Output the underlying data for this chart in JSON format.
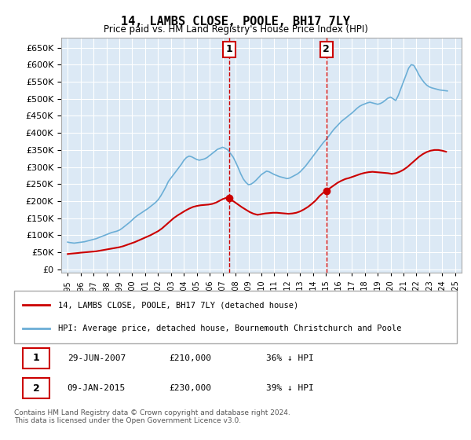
{
  "title": "14, LAMBS CLOSE, POOLE, BH17 7LY",
  "subtitle": "Price paid vs. HM Land Registry's House Price Index (HPI)",
  "ylabel_format": "£{0}K",
  "yticks": [
    0,
    50000,
    100000,
    150000,
    200000,
    250000,
    300000,
    350000,
    400000,
    450000,
    500000,
    550000,
    600000,
    650000
  ],
  "xlim_start": 1994.5,
  "xlim_end": 2025.5,
  "ylim": [
    -10000,
    680000
  ],
  "bg_color": "#dce9f5",
  "plot_bg_color": "#dce9f5",
  "grid_color": "#ffffff",
  "hpi_color": "#6baed6",
  "price_color": "#cc0000",
  "marker1_date": 2007.49,
  "marker1_price": 210000,
  "marker1_label": "1",
  "marker2_date": 2015.03,
  "marker2_price": 230000,
  "marker2_label": "2",
  "legend_line1": "14, LAMBS CLOSE, POOLE, BH17 7LY (detached house)",
  "legend_line2": "HPI: Average price, detached house, Bournemouth Christchurch and Poole",
  "table_row1": "1    29-JUN-2007    £210,000    36% ↓ HPI",
  "table_row2": "2    09-JAN-2015    £230,000    39% ↓ HPI",
  "footnote": "Contains HM Land Registry data © Crown copyright and database right 2024.\nThis data is licensed under the Open Government Licence v3.0.",
  "hpi_data": {
    "years": [
      1995.0,
      1995.1,
      1995.2,
      1995.3,
      1995.4,
      1995.5,
      1995.6,
      1995.7,
      1995.8,
      1995.9,
      1996.0,
      1996.1,
      1996.2,
      1996.3,
      1996.4,
      1996.5,
      1996.6,
      1996.7,
      1996.8,
      1996.9,
      1997.0,
      1997.2,
      1997.4,
      1997.6,
      1997.8,
      1998.0,
      1998.2,
      1998.4,
      1998.6,
      1998.8,
      1999.0,
      1999.2,
      1999.4,
      1999.6,
      1999.8,
      2000.0,
      2000.2,
      2000.4,
      2000.6,
      2000.8,
      2001.0,
      2001.2,
      2001.4,
      2001.6,
      2001.8,
      2002.0,
      2002.2,
      2002.4,
      2002.6,
      2002.8,
      2003.0,
      2003.2,
      2003.4,
      2003.6,
      2003.8,
      2004.0,
      2004.2,
      2004.4,
      2004.6,
      2004.8,
      2005.0,
      2005.2,
      2005.4,
      2005.6,
      2005.8,
      2006.0,
      2006.2,
      2006.4,
      2006.6,
      2006.8,
      2007.0,
      2007.2,
      2007.4,
      2007.6,
      2007.8,
      2008.0,
      2008.2,
      2008.4,
      2008.6,
      2008.8,
      2009.0,
      2009.2,
      2009.4,
      2009.6,
      2009.8,
      2010.0,
      2010.2,
      2010.4,
      2010.6,
      2010.8,
      2011.0,
      2011.2,
      2011.4,
      2011.6,
      2011.8,
      2012.0,
      2012.2,
      2012.4,
      2012.6,
      2012.8,
      2013.0,
      2013.2,
      2013.4,
      2013.6,
      2013.8,
      2014.0,
      2014.2,
      2014.4,
      2014.6,
      2014.8,
      2015.0,
      2015.2,
      2015.4,
      2015.6,
      2015.8,
      2016.0,
      2016.2,
      2016.4,
      2016.6,
      2016.8,
      2017.0,
      2017.2,
      2017.4,
      2017.6,
      2017.8,
      2018.0,
      2018.2,
      2018.4,
      2018.6,
      2018.8,
      2019.0,
      2019.2,
      2019.4,
      2019.6,
      2019.8,
      2020.0,
      2020.2,
      2020.4,
      2020.6,
      2020.8,
      2021.0,
      2021.2,
      2021.4,
      2021.6,
      2021.8,
      2022.0,
      2022.2,
      2022.4,
      2022.6,
      2022.8,
      2023.0,
      2023.2,
      2023.4,
      2023.6,
      2023.8,
      2024.0,
      2024.2,
      2024.4
    ],
    "values": [
      80000,
      79000,
      78500,
      78000,
      77500,
      77000,
      77500,
      78000,
      78500,
      79000,
      79500,
      80000,
      80500,
      81000,
      82000,
      83000,
      84000,
      85000,
      86000,
      87000,
      88000,
      90000,
      93000,
      96000,
      99000,
      102000,
      105000,
      108000,
      110000,
      112000,
      115000,
      120000,
      126000,
      132000,
      138000,
      145000,
      152000,
      158000,
      163000,
      168000,
      173000,
      178000,
      184000,
      190000,
      196000,
      204000,
      215000,
      228000,
      242000,
      258000,
      268000,
      278000,
      288000,
      298000,
      308000,
      320000,
      328000,
      332000,
      330000,
      326000,
      322000,
      320000,
      322000,
      324000,
      328000,
      334000,
      340000,
      346000,
      352000,
      355000,
      358000,
      355000,
      350000,
      340000,
      330000,
      315000,
      298000,
      280000,
      265000,
      255000,
      248000,
      250000,
      255000,
      262000,
      270000,
      278000,
      283000,
      288000,
      286000,
      282000,
      278000,
      275000,
      272000,
      270000,
      268000,
      266000,
      268000,
      272000,
      276000,
      280000,
      286000,
      294000,
      302000,
      312000,
      322000,
      332000,
      342000,
      352000,
      362000,
      372000,
      380000,
      390000,
      400000,
      410000,
      418000,
      426000,
      434000,
      440000,
      446000,
      452000,
      458000,
      465000,
      472000,
      478000,
      482000,
      485000,
      488000,
      490000,
      488000,
      486000,
      484000,
      486000,
      490000,
      496000,
      502000,
      505000,
      500000,
      495000,
      510000,
      530000,
      550000,
      570000,
      590000,
      600000,
      598000,
      585000,
      570000,
      558000,
      548000,
      540000,
      535000,
      532000,
      530000,
      528000,
      526000,
      525000,
      524000,
      523000
    ]
  },
  "price_data": {
    "years": [
      1995.0,
      1995.2,
      1995.5,
      1995.8,
      1996.0,
      1996.3,
      1996.6,
      1996.9,
      1997.2,
      1997.5,
      1997.8,
      1998.1,
      1998.4,
      1998.7,
      1999.0,
      1999.3,
      1999.6,
      1999.9,
      2000.2,
      2000.5,
      2000.8,
      2001.1,
      2001.4,
      2001.7,
      2002.0,
      2002.3,
      2002.6,
      2002.9,
      2003.2,
      2003.5,
      2003.8,
      2004.1,
      2004.4,
      2004.7,
      2005.0,
      2005.3,
      2005.6,
      2005.9,
      2006.2,
      2006.5,
      2006.8,
      2007.0,
      2007.3,
      2007.49,
      2007.6,
      2007.9,
      2008.2,
      2008.5,
      2008.8,
      2009.1,
      2009.4,
      2009.7,
      2010.0,
      2010.3,
      2010.6,
      2010.9,
      2011.2,
      2011.5,
      2011.8,
      2012.1,
      2012.4,
      2012.7,
      2013.0,
      2013.3,
      2013.6,
      2013.9,
      2014.2,
      2014.5,
      2014.8,
      2015.03,
      2015.3,
      2015.6,
      2015.9,
      2016.2,
      2016.5,
      2016.8,
      2017.1,
      2017.4,
      2017.7,
      2018.0,
      2018.3,
      2018.6,
      2018.9,
      2019.2,
      2019.5,
      2019.8,
      2020.1,
      2020.4,
      2020.7,
      2021.0,
      2021.3,
      2021.6,
      2021.9,
      2022.2,
      2022.5,
      2022.8,
      2023.1,
      2023.4,
      2023.7,
      2024.0,
      2024.3
    ],
    "values": [
      45000,
      46000,
      47000,
      48000,
      49000,
      50000,
      51000,
      52000,
      53000,
      55000,
      57000,
      59000,
      61000,
      63000,
      65000,
      68000,
      72000,
      76000,
      80000,
      85000,
      90000,
      95000,
      100000,
      106000,
      112000,
      120000,
      130000,
      140000,
      150000,
      158000,
      165000,
      172000,
      178000,
      183000,
      186000,
      188000,
      189000,
      190000,
      192000,
      196000,
      202000,
      206000,
      210000,
      210000,
      205000,
      198000,
      190000,
      182000,
      175000,
      168000,
      163000,
      160000,
      162000,
      164000,
      165000,
      166000,
      166000,
      165000,
      164000,
      163000,
      164000,
      166000,
      170000,
      176000,
      183000,
      192000,
      202000,
      215000,
      225000,
      230000,
      238000,
      246000,
      254000,
      260000,
      265000,
      268000,
      272000,
      276000,
      280000,
      283000,
      285000,
      286000,
      285000,
      284000,
      283000,
      282000,
      280000,
      282000,
      286000,
      292000,
      300000,
      310000,
      320000,
      330000,
      338000,
      344000,
      348000,
      350000,
      350000,
      348000,
      345000
    ]
  }
}
